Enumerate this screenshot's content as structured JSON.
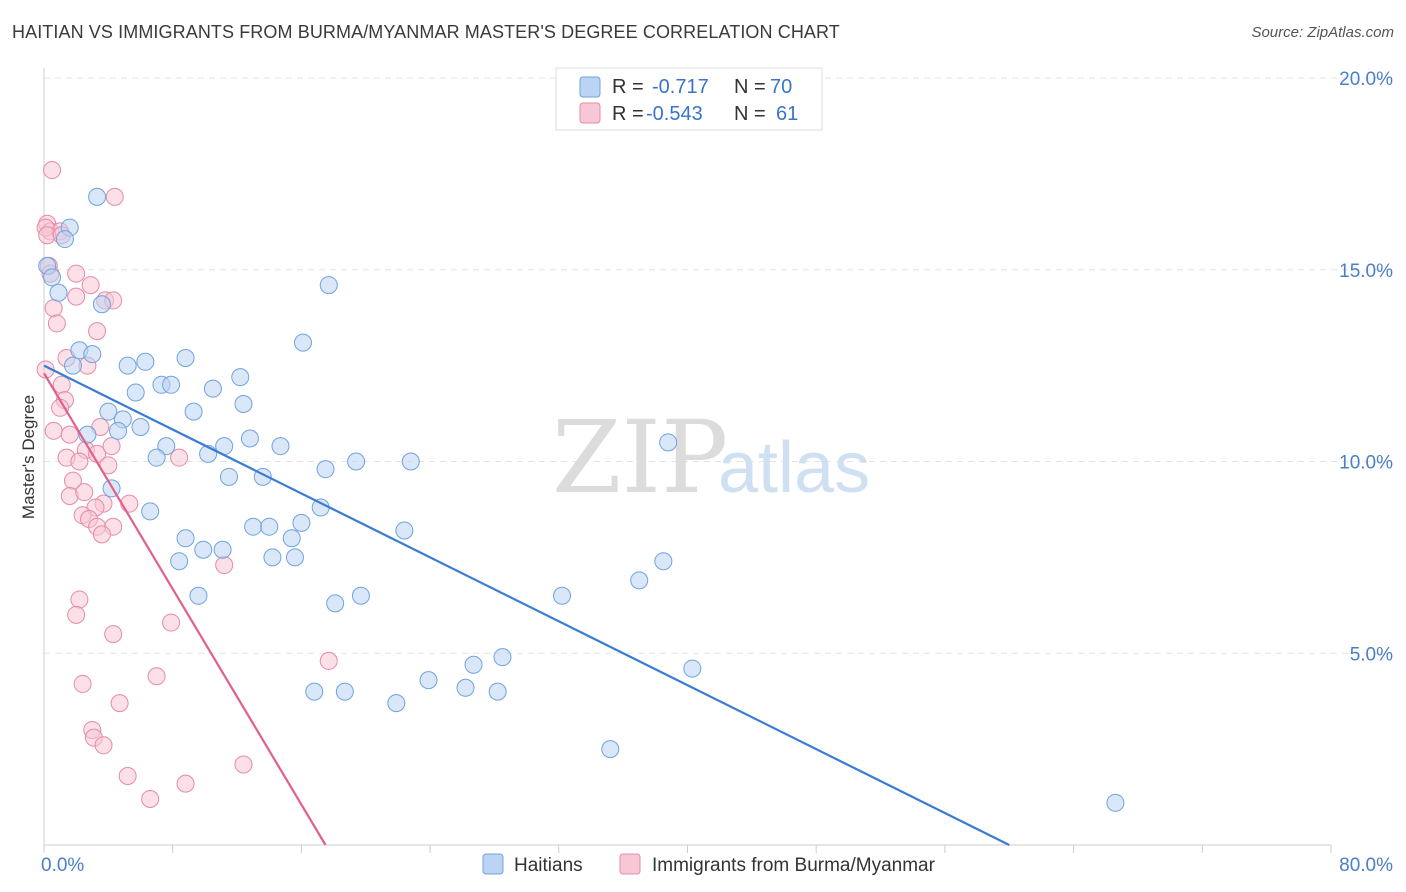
{
  "title": "HAITIAN VS IMMIGRANTS FROM BURMA/MYANMAR MASTER'S DEGREE CORRELATION CHART",
  "source": "Source: ZipAtlas.com",
  "watermark": {
    "zip": "ZIP",
    "atlas": "atlas"
  },
  "legend": {
    "r_label": "R =",
    "n_label": "N =",
    "rows": [
      {
        "name": "Haitians",
        "r": "-0.717",
        "n": "70",
        "color": "#6fa3e0",
        "fill": "#bcd4f3"
      },
      {
        "name": "Immigrants from Burma/Myanmar",
        "r": "-0.543",
        "n": "61",
        "color": "#e68aa8",
        "fill": "#f7c7d6"
      }
    ]
  },
  "chart_data": {
    "type": "scatter",
    "title": "HAITIAN VS IMMIGRANTS FROM BURMA/MYANMAR MASTER'S DEGREE CORRELATION CHART",
    "xlabel": "",
    "ylabel": "Master's Degree",
    "xlim": [
      0,
      80
    ],
    "ylim": [
      0,
      20
    ],
    "x_tick_labels": [
      "0.0%",
      "80.0%"
    ],
    "y_ticks": [
      5,
      10,
      15,
      20
    ],
    "y_tick_labels": [
      "5.0%",
      "10.0%",
      "15.0%",
      "20.0%"
    ],
    "grid": true,
    "series": [
      {
        "name": "Haitians",
        "color": "#3a7bd5",
        "trend": {
          "x0": 0,
          "y0": 12.5,
          "x1": 60,
          "y1": 0
        },
        "points": [
          [
            3.3,
            16.9
          ],
          [
            1.6,
            16.1
          ],
          [
            1.3,
            15.8
          ],
          [
            0.2,
            15.1
          ],
          [
            0.5,
            14.8
          ],
          [
            0.9,
            14.4
          ],
          [
            3.6,
            14.1
          ],
          [
            17.7,
            14.6
          ],
          [
            16.1,
            13.1
          ],
          [
            2.2,
            12.9
          ],
          [
            3.0,
            12.8
          ],
          [
            1.8,
            12.5
          ],
          [
            5.2,
            12.5
          ],
          [
            6.3,
            12.6
          ],
          [
            8.8,
            12.7
          ],
          [
            12.2,
            12.2
          ],
          [
            7.3,
            12.0
          ],
          [
            7.9,
            12.0
          ],
          [
            5.7,
            11.8
          ],
          [
            10.5,
            11.9
          ],
          [
            12.4,
            11.5
          ],
          [
            9.3,
            11.3
          ],
          [
            4.0,
            11.3
          ],
          [
            4.9,
            11.1
          ],
          [
            4.6,
            10.8
          ],
          [
            6.0,
            10.9
          ],
          [
            2.7,
            10.7
          ],
          [
            7.6,
            10.4
          ],
          [
            11.2,
            10.4
          ],
          [
            12.8,
            10.6
          ],
          [
            14.7,
            10.4
          ],
          [
            10.2,
            10.2
          ],
          [
            7.0,
            10.1
          ],
          [
            17.5,
            9.8
          ],
          [
            19.4,
            10.0
          ],
          [
            22.8,
            10.0
          ],
          [
            38.8,
            10.5
          ],
          [
            11.5,
            9.6
          ],
          [
            13.6,
            9.6
          ],
          [
            4.2,
            9.3
          ],
          [
            6.6,
            8.7
          ],
          [
            17.2,
            8.8
          ],
          [
            16.0,
            8.4
          ],
          [
            13.0,
            8.3
          ],
          [
            14.0,
            8.3
          ],
          [
            22.4,
            8.2
          ],
          [
            8.8,
            8.0
          ],
          [
            15.4,
            8.0
          ],
          [
            9.9,
            7.7
          ],
          [
            11.1,
            7.7
          ],
          [
            8.4,
            7.4
          ],
          [
            14.2,
            7.5
          ],
          [
            15.6,
            7.5
          ],
          [
            38.5,
            7.4
          ],
          [
            37.0,
            6.9
          ],
          [
            9.6,
            6.5
          ],
          [
            18.1,
            6.3
          ],
          [
            19.7,
            6.5
          ],
          [
            32.2,
            6.5
          ],
          [
            28.5,
            4.9
          ],
          [
            26.7,
            4.7
          ],
          [
            40.3,
            4.6
          ],
          [
            23.9,
            4.3
          ],
          [
            16.8,
            4.0
          ],
          [
            18.7,
            4.0
          ],
          [
            26.2,
            4.1
          ],
          [
            28.2,
            4.0
          ],
          [
            21.9,
            3.7
          ],
          [
            35.2,
            2.5
          ],
          [
            66.6,
            1.1
          ]
        ]
      },
      {
        "name": "Immigrants from Burma/Myanmar",
        "color": "#e0608a",
        "trend": {
          "x0": 0,
          "y0": 12.3,
          "x1": 17.5,
          "y1": 0
        },
        "points": [
          [
            0.5,
            17.6
          ],
          [
            4.4,
            16.9
          ],
          [
            0.2,
            16.2
          ],
          [
            0.4,
            16.0
          ],
          [
            1.0,
            16.0
          ],
          [
            0.3,
            15.1
          ],
          [
            2.9,
            14.6
          ],
          [
            2.0,
            14.3
          ],
          [
            3.8,
            14.2
          ],
          [
            4.3,
            14.2
          ],
          [
            0.6,
            14.0
          ],
          [
            0.8,
            13.6
          ],
          [
            3.3,
            13.4
          ],
          [
            1.4,
            12.7
          ],
          [
            0.1,
            12.4
          ],
          [
            2.7,
            12.5
          ],
          [
            1.1,
            12.0
          ],
          [
            1.3,
            11.6
          ],
          [
            1.0,
            11.4
          ],
          [
            0.6,
            10.8
          ],
          [
            3.5,
            10.9
          ],
          [
            1.6,
            10.7
          ],
          [
            2.6,
            10.3
          ],
          [
            3.3,
            10.2
          ],
          [
            4.2,
            10.4
          ],
          [
            8.4,
            10.1
          ],
          [
            1.4,
            10.1
          ],
          [
            2.2,
            10.0
          ],
          [
            4.0,
            9.9
          ],
          [
            1.8,
            9.5
          ],
          [
            1.6,
            9.1
          ],
          [
            2.5,
            9.2
          ],
          [
            5.3,
            8.9
          ],
          [
            3.7,
            8.9
          ],
          [
            3.2,
            8.8
          ],
          [
            2.4,
            8.6
          ],
          [
            2.8,
            8.5
          ],
          [
            3.3,
            8.3
          ],
          [
            4.3,
            8.3
          ],
          [
            3.6,
            8.1
          ],
          [
            11.2,
            7.3
          ],
          [
            2.2,
            6.4
          ],
          [
            2.0,
            6.0
          ],
          [
            7.9,
            5.8
          ],
          [
            4.3,
            5.5
          ],
          [
            17.7,
            4.8
          ],
          [
            7.0,
            4.4
          ],
          [
            2.4,
            4.2
          ],
          [
            4.7,
            3.7
          ],
          [
            3.0,
            3.0
          ],
          [
            3.1,
            2.8
          ],
          [
            3.7,
            2.6
          ],
          [
            12.4,
            2.1
          ],
          [
            5.2,
            1.8
          ],
          [
            8.8,
            1.6
          ],
          [
            6.6,
            1.2
          ],
          [
            0.1,
            16.1
          ],
          [
            0.2,
            15.9
          ],
          [
            1.1,
            15.9
          ],
          [
            2.0,
            14.9
          ],
          [
            0.4,
            14.9
          ]
        ]
      }
    ]
  },
  "bottom_legend": [
    "Haitians",
    "Immigrants from Burma/Myanmar"
  ]
}
